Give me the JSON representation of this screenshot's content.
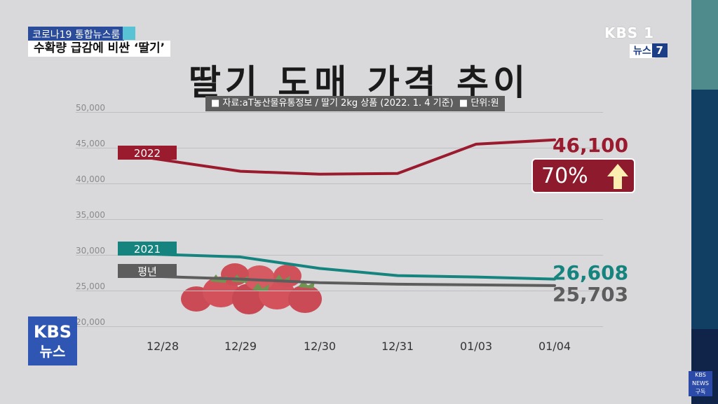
{
  "broadcast": {
    "tag": "코로나19 통합뉴스룸",
    "headline": "수확량 급감에 비싼 ‘딸기’",
    "channel": "KBS 1",
    "program_label": "뉴스",
    "program_num": "7",
    "logo_line1": "KBS",
    "logo_line2": "뉴스"
  },
  "colors": {
    "y2022": "#9a1a2e",
    "y2021": "#15847f",
    "avg": "#5d5d5d",
    "bg": "#d9d9dc"
  },
  "chart_data": {
    "type": "line",
    "title": "딸기 도매 가격 추이",
    "source": "자료:aT농산물유통정보 / 딸기 2kg 상품 (2022. 1. 4 기준)",
    "unit": "단위:원",
    "categories": [
      "12/28",
      "12/29",
      "12/30",
      "12/31",
      "01/03",
      "01/04"
    ],
    "ylim": [
      20000,
      50000
    ],
    "yticks": [
      "20,000",
      "25,000",
      "30,000",
      "35,000",
      "40,000",
      "45,000",
      "50,000"
    ],
    "grid": true,
    "series": [
      {
        "name": "2022",
        "values": [
          43500,
          41700,
          41300,
          41400,
          45500,
          46100
        ],
        "end_label": "46,100",
        "color": "#9a1a2e"
      },
      {
        "name": "2021",
        "values": [
          30100,
          29700,
          28100,
          27100,
          26900,
          26608
        ],
        "end_label": "26,608",
        "color": "#15847f"
      },
      {
        "name": "평년",
        "values": [
          27000,
          26600,
          26100,
          25900,
          25800,
          25703
        ],
        "end_label": "25,703",
        "color": "#5d5d5d"
      }
    ],
    "annotation": {
      "text": "70%",
      "direction": "up"
    }
  }
}
